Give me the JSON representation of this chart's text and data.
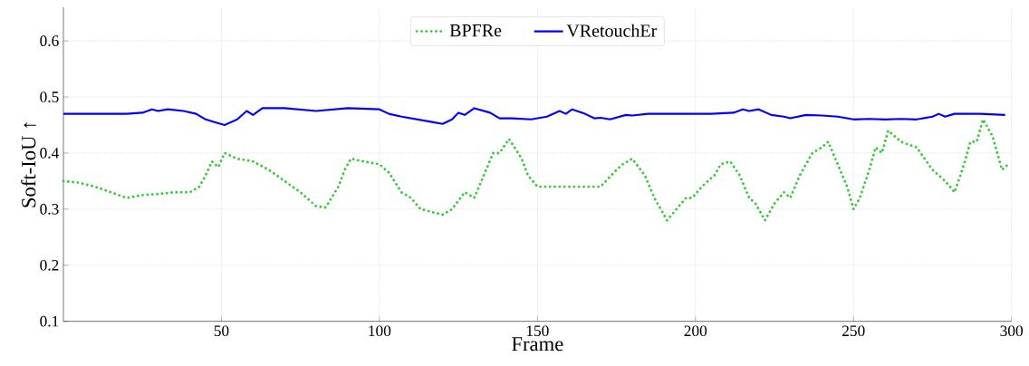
{
  "chart_data": {
    "type": "line",
    "xlabel": "Frame",
    "ylabel": "Soft-IoU ↑",
    "xlim": [
      0,
      300
    ],
    "ylim": [
      0.1,
      0.66
    ],
    "xticks": [
      50,
      100,
      150,
      200,
      250,
      300
    ],
    "yticks": [
      0.1,
      0.2,
      0.3,
      0.4,
      0.5,
      0.6
    ],
    "grid": true,
    "legend": "top",
    "marker": "none",
    "series": [
      {
        "name": "BPFRe",
        "color": "#33cc33",
        "line_style": "dotted",
        "x": [
          0,
          5,
          10,
          15,
          20,
          25,
          30,
          35,
          40,
          43,
          45,
          47,
          49,
          51,
          55,
          60,
          65,
          70,
          75,
          80,
          83,
          87,
          89,
          91,
          95,
          100,
          103,
          107,
          110,
          113,
          120,
          123,
          127,
          130,
          133,
          136,
          138,
          141,
          145,
          147,
          150,
          155,
          160,
          165,
          170,
          175,
          177,
          180,
          184,
          187,
          189,
          191,
          194,
          197,
          199,
          202,
          206,
          208,
          211,
          214,
          217,
          219,
          222,
          225,
          228,
          230,
          233,
          237,
          240,
          242,
          245,
          248,
          250,
          252,
          255,
          257,
          259,
          261,
          265,
          270,
          275,
          279,
          282,
          285,
          287,
          289,
          291,
          294,
          297,
          299
        ],
        "values": [
          0.35,
          0.347,
          0.34,
          0.33,
          0.32,
          0.325,
          0.327,
          0.33,
          0.33,
          0.34,
          0.36,
          0.385,
          0.375,
          0.4,
          0.39,
          0.385,
          0.37,
          0.35,
          0.33,
          0.305,
          0.303,
          0.34,
          0.37,
          0.39,
          0.385,
          0.38,
          0.365,
          0.33,
          0.32,
          0.3,
          0.29,
          0.3,
          0.33,
          0.32,
          0.36,
          0.4,
          0.4,
          0.425,
          0.39,
          0.36,
          0.34,
          0.34,
          0.34,
          0.34,
          0.34,
          0.37,
          0.38,
          0.39,
          0.36,
          0.32,
          0.3,
          0.28,
          0.3,
          0.32,
          0.32,
          0.34,
          0.36,
          0.38,
          0.385,
          0.36,
          0.32,
          0.31,
          0.28,
          0.31,
          0.33,
          0.32,
          0.36,
          0.4,
          0.41,
          0.42,
          0.38,
          0.34,
          0.3,
          0.32,
          0.37,
          0.41,
          0.4,
          0.44,
          0.42,
          0.41,
          0.37,
          0.35,
          0.33,
          0.38,
          0.42,
          0.42,
          0.46,
          0.43,
          0.37,
          0.38
        ]
      },
      {
        "name": "VRetouchEr",
        "color": "#0000ff",
        "line_style": "solid",
        "x": [
          0,
          10,
          20,
          25,
          28,
          30,
          33,
          38,
          42,
          45,
          48,
          51,
          55,
          58,
          60,
          63,
          70,
          80,
          90,
          100,
          103,
          107,
          112,
          117,
          120,
          123,
          125,
          127,
          130,
          135,
          138,
          142,
          148,
          153,
          157,
          159,
          161,
          165,
          168,
          170,
          173,
          178,
          180,
          185,
          195,
          205,
          212,
          215,
          217,
          220,
          224,
          228,
          230,
          235,
          240,
          245,
          250,
          255,
          260,
          265,
          270,
          275,
          277,
          279,
          282,
          290,
          298
        ],
        "values": [
          0.47,
          0.47,
          0.47,
          0.472,
          0.478,
          0.475,
          0.478,
          0.475,
          0.47,
          0.46,
          0.455,
          0.45,
          0.46,
          0.475,
          0.468,
          0.48,
          0.48,
          0.475,
          0.48,
          0.478,
          0.47,
          0.465,
          0.46,
          0.455,
          0.452,
          0.46,
          0.472,
          0.468,
          0.48,
          0.472,
          0.462,
          0.462,
          0.46,
          0.465,
          0.475,
          0.47,
          0.478,
          0.47,
          0.462,
          0.463,
          0.46,
          0.468,
          0.467,
          0.47,
          0.47,
          0.47,
          0.472,
          0.478,
          0.475,
          0.478,
          0.468,
          0.465,
          0.462,
          0.468,
          0.467,
          0.465,
          0.46,
          0.461,
          0.46,
          0.461,
          0.46,
          0.465,
          0.47,
          0.465,
          0.47,
          0.47,
          0.468
        ]
      }
    ]
  }
}
